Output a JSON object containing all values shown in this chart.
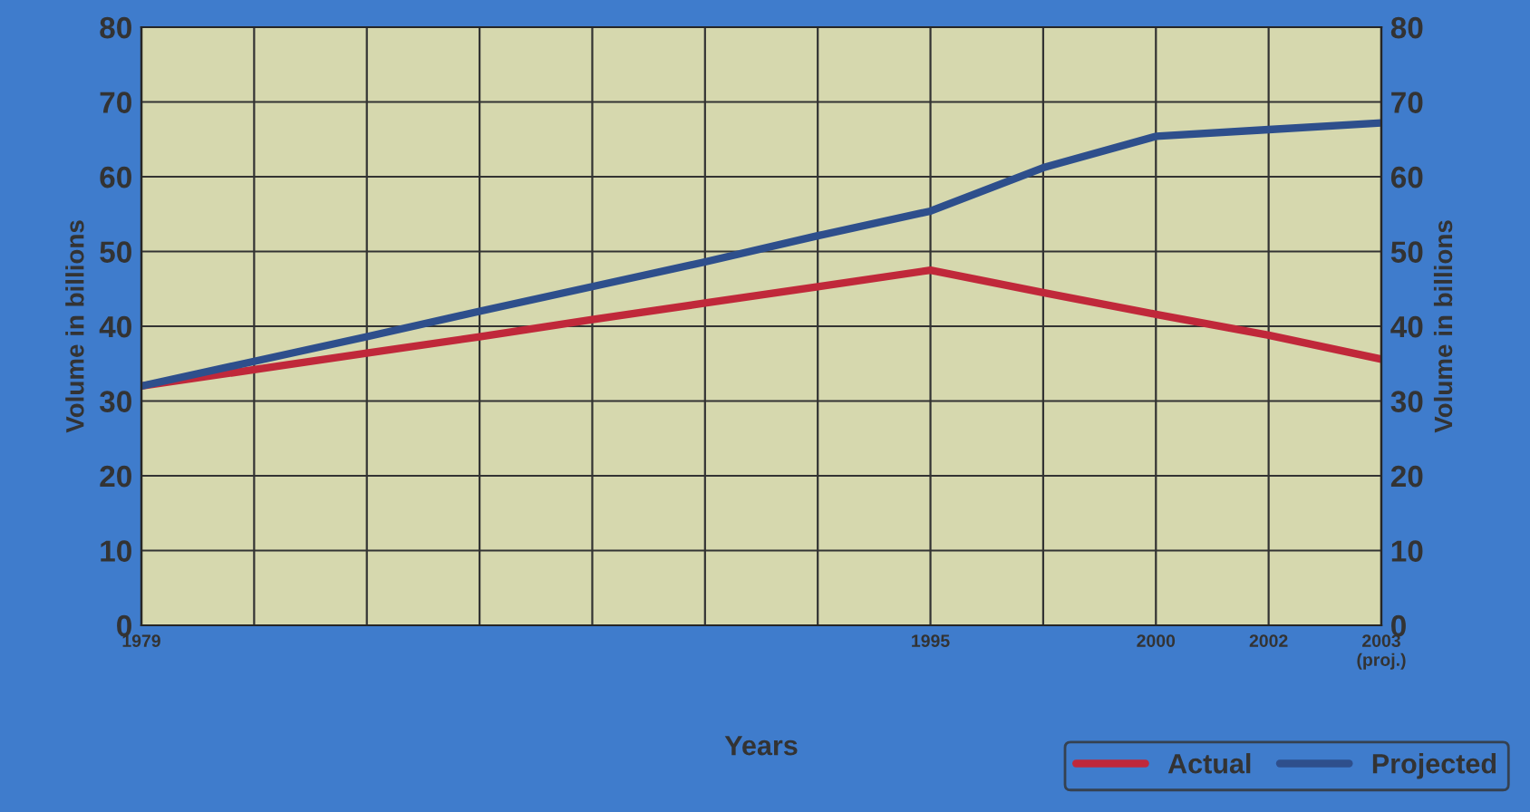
{
  "chart_data": {
    "type": "line",
    "xlabel": "Years",
    "ylabel": "Volume in billions",
    "y2label": "Volume in billions",
    "categories": [
      "1979",
      null,
      null,
      null,
      null,
      null,
      null,
      "1995",
      null,
      "2000",
      "2002",
      "2003\n(proj.)"
    ],
    "series": [
      {
        "name": "Actual",
        "color": "#c0283a",
        "values": [
          32,
          34.2,
          36.4,
          38.6,
          40.9,
          43.1,
          45.3,
          47.5,
          44.5,
          41.6,
          38.8,
          35.6
        ]
      },
      {
        "name": "Projected",
        "color": "#2e4f8c",
        "values": [
          32,
          35.3,
          38.6,
          42,
          45.3,
          48.6,
          52.1,
          55.4,
          61.2,
          65.4,
          66.3,
          67.2
        ]
      }
    ],
    "ylim": [
      0,
      80
    ],
    "yticks": [
      0,
      10,
      20,
      30,
      40,
      50,
      60,
      70,
      80
    ],
    "y2lim": [
      0,
      80
    ],
    "y2ticks": [
      0,
      10,
      20,
      30,
      40,
      50,
      60,
      70,
      80
    ],
    "grid": true,
    "legend": "bottom right",
    "marker": "none",
    "line_style": "solid"
  }
}
